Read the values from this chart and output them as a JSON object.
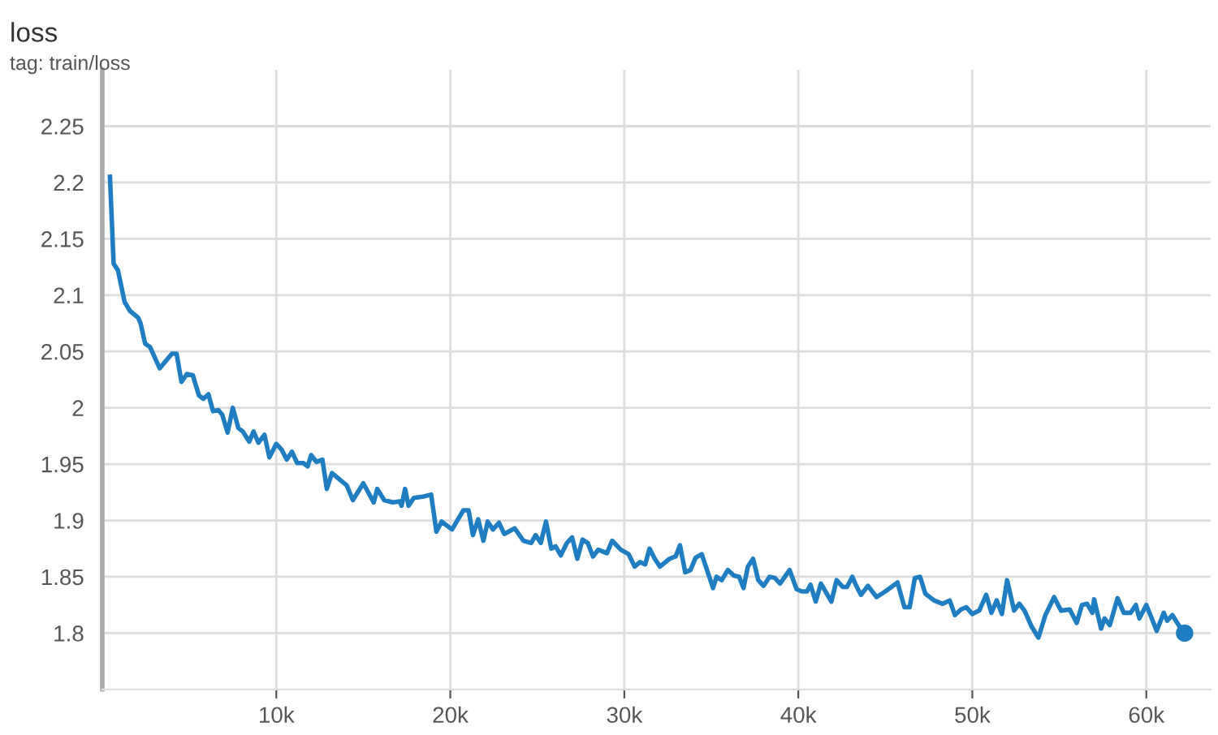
{
  "chart_data": {
    "type": "line",
    "title": "loss",
    "subtitle": "tag: train/loss",
    "xlim": [
      0,
      63700
    ],
    "ylim": [
      1.75,
      2.3
    ],
    "xticks": [
      {
        "value": 10000,
        "label": "10k"
      },
      {
        "value": 20000,
        "label": "20k"
      },
      {
        "value": 30000,
        "label": "30k"
      },
      {
        "value": 40000,
        "label": "40k"
      },
      {
        "value": 50000,
        "label": "50k"
      },
      {
        "value": 60000,
        "label": "60k"
      }
    ],
    "yticks": [
      1.8,
      1.85,
      1.9,
      1.95,
      2,
      2.05,
      2.1,
      2.15,
      2.2,
      2.25
    ],
    "grid": true,
    "series": [
      {
        "color": "#1f7ec2",
        "x": [
          440,
          650,
          900,
          1280,
          1590,
          2060,
          2200,
          2460,
          2740,
          3300,
          4000,
          4270,
          4550,
          4860,
          5200,
          5550,
          5800,
          6100,
          6360,
          6670,
          6890,
          7200,
          7500,
          7820,
          8070,
          8440,
          8690,
          8970,
          9320,
          9600,
          10000,
          10300,
          10600,
          10900,
          11200,
          11550,
          11800,
          12000,
          12300,
          12650,
          12900,
          13200,
          13670,
          14050,
          14400,
          15000,
          15600,
          15800,
          16200,
          16700,
          17100,
          17200,
          17400,
          17600,
          17900,
          18400,
          18900,
          19200,
          19500,
          20100,
          20750,
          21050,
          21300,
          21600,
          21900,
          22150,
          22450,
          22800,
          23100,
          23700,
          24200,
          24650,
          24900,
          25200,
          25500,
          25800,
          26050,
          26350,
          26700,
          27000,
          27300,
          27600,
          27900,
          28200,
          28500,
          29000,
          29300,
          29800,
          30250,
          30600,
          30900,
          31200,
          31450,
          31750,
          32050,
          32600,
          32950,
          33200,
          33500,
          33800,
          34100,
          34450,
          35100,
          35300,
          35600,
          35950,
          36300,
          36600,
          36850,
          37100,
          37400,
          37700,
          38000,
          38350,
          38650,
          38950,
          39500,
          39900,
          40200,
          40500,
          40700,
          41000,
          41300,
          41900,
          42200,
          42550,
          42800,
          43100,
          43300,
          43600,
          44000,
          44500,
          45000,
          45700,
          46100,
          46400,
          46700,
          47000,
          47300,
          47800,
          48300,
          48700,
          49000,
          49350,
          49650,
          50000,
          50400,
          50800,
          51100,
          51400,
          51700,
          52000,
          52400,
          52700,
          53000,
          53400,
          53800,
          54200,
          54700,
          55100,
          55600,
          56000,
          56300,
          56600,
          56900,
          57000,
          57400,
          57600,
          57900,
          58350,
          58700,
          59100,
          59400,
          59600,
          60000,
          60600,
          61000,
          61200,
          61500,
          61900,
          62200
        ],
        "values": [
          2.205,
          2.128,
          2.122,
          2.094,
          2.086,
          2.08,
          2.075,
          2.057,
          2.054,
          2.035,
          2.048,
          2.048,
          2.023,
          2.03,
          2.029,
          2.011,
          2.008,
          2.012,
          1.997,
          1.998,
          1.994,
          1.978,
          2.0,
          1.982,
          1.979,
          1.97,
          1.979,
          1.969,
          1.976,
          1.956,
          1.968,
          1.963,
          1.954,
          1.961,
          1.951,
          1.951,
          1.948,
          1.958,
          1.952,
          1.954,
          1.928,
          1.942,
          1.936,
          1.931,
          1.918,
          1.933,
          1.916,
          1.928,
          1.918,
          1.916,
          1.917,
          1.913,
          1.928,
          1.913,
          1.92,
          1.921,
          1.923,
          1.89,
          1.899,
          1.892,
          1.909,
          1.909,
          1.887,
          1.901,
          1.882,
          1.899,
          1.892,
          1.898,
          1.888,
          1.893,
          1.882,
          1.88,
          1.887,
          1.88,
          1.899,
          1.875,
          1.877,
          1.869,
          1.88,
          1.885,
          1.866,
          1.883,
          1.88,
          1.868,
          1.874,
          1.871,
          1.882,
          1.874,
          1.87,
          1.859,
          1.863,
          1.861,
          1.875,
          1.866,
          1.859,
          1.866,
          1.868,
          1.878,
          1.854,
          1.856,
          1.867,
          1.87,
          1.84,
          1.85,
          1.847,
          1.856,
          1.851,
          1.85,
          1.84,
          1.859,
          1.866,
          1.847,
          1.842,
          1.85,
          1.849,
          1.844,
          1.856,
          1.839,
          1.837,
          1.837,
          1.843,
          1.828,
          1.844,
          1.828,
          1.847,
          1.841,
          1.841,
          1.85,
          1.843,
          1.834,
          1.842,
          1.832,
          1.837,
          1.845,
          1.823,
          1.823,
          1.849,
          1.85,
          1.835,
          1.829,
          1.826,
          1.829,
          1.816,
          1.821,
          1.823,
          1.817,
          1.82,
          1.834,
          1.818,
          1.829,
          1.817,
          1.847,
          1.82,
          1.826,
          1.82,
          1.806,
          1.796,
          1.816,
          1.832,
          1.82,
          1.821,
          1.809,
          1.825,
          1.826,
          1.818,
          1.83,
          1.804,
          1.813,
          1.807,
          1.831,
          1.818,
          1.818,
          1.825,
          1.813,
          1.825,
          1.802,
          1.818,
          1.811,
          1.816,
          1.806,
          1.8
        ]
      },
      {
        "type": "scatter",
        "color": "#1f7ec2",
        "marker": "circle",
        "x": [
          62200
        ],
        "values": [
          1.8
        ]
      }
    ]
  }
}
